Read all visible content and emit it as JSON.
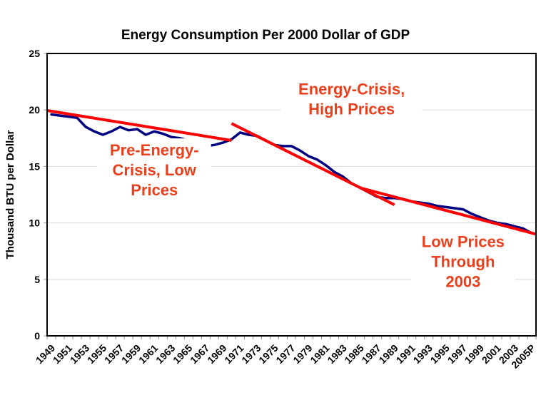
{
  "chart_data": {
    "type": "line",
    "title": "Energy Consumption Per 2000 Dollar of GDP",
    "xlabel": "",
    "ylabel": "Thousand BTU per Dollar",
    "ylim": [
      0,
      25
    ],
    "yticks": [
      0,
      5,
      10,
      15,
      20,
      25
    ],
    "grid": true,
    "legend": "none",
    "categories": [
      "1949",
      "1950",
      "1951",
      "1952",
      "1953",
      "1954",
      "1955",
      "1956",
      "1957",
      "1958",
      "1959",
      "1960",
      "1961",
      "1962",
      "1963",
      "1964",
      "1965",
      "1966",
      "1967",
      "1968",
      "1969",
      "1970",
      "1971",
      "1972",
      "1973",
      "1974",
      "1975",
      "1976",
      "1977",
      "1978",
      "1979",
      "1980",
      "1981",
      "1982",
      "1983",
      "1984",
      "1985",
      "1986",
      "1987",
      "1988",
      "1989",
      "1990",
      "1991",
      "1992",
      "1993",
      "1994",
      "1995",
      "1996",
      "1997",
      "1998",
      "1999",
      "2000",
      "2001",
      "2002",
      "2003",
      "2004",
      "2005P"
    ],
    "xtick_labels": [
      "1949",
      "1951",
      "1953",
      "1955",
      "1957",
      "1959",
      "1961",
      "1963",
      "1965",
      "1967",
      "1969",
      "1971",
      "1973",
      "1975",
      "1977",
      "1979",
      "1981",
      "1983",
      "1985",
      "1987",
      "1989",
      "1991",
      "1993",
      "1995",
      "1997",
      "1999",
      "2001",
      "2003",
      "2005P"
    ],
    "series": [
      {
        "name": "Energy Consumption per 2000 Dollar of GDP",
        "color": "#000080",
        "values": [
          19.6,
          19.5,
          19.4,
          19.3,
          18.5,
          18.1,
          17.8,
          18.1,
          18.5,
          18.2,
          18.3,
          17.8,
          18.1,
          17.9,
          17.6,
          17.5,
          17.3,
          17.0,
          16.8,
          16.9,
          17.1,
          17.4,
          18.0,
          17.8,
          17.7,
          17.3,
          16.9,
          16.8,
          16.8,
          16.4,
          15.9,
          15.6,
          15.1,
          14.5,
          14.1,
          13.5,
          13.1,
          12.7,
          12.3,
          12.2,
          12.2,
          12.1,
          11.9,
          11.8,
          11.7,
          11.5,
          11.4,
          11.3,
          11.2,
          10.8,
          10.5,
          10.2,
          10.0,
          9.9,
          9.7,
          9.5,
          9.1
        ]
      }
    ],
    "trend_lines": [
      {
        "name": "pre-crisis-trend",
        "color": "#ff0000",
        "from": {
          "x": "1949",
          "y": 19.95
        },
        "to": {
          "x": "1970",
          "y": 17.3
        }
      },
      {
        "name": "crisis-trend",
        "color": "#ff0000",
        "from": {
          "x": "1970",
          "y": 18.8
        },
        "to": {
          "x": "1989",
          "y": 11.6
        }
      },
      {
        "name": "low-prices-trend",
        "color": "#ff0000",
        "from": {
          "x": "1985",
          "y": 13.1
        },
        "to": {
          "x": "2005P",
          "y": 9.0
        }
      }
    ],
    "annotations": [
      {
        "name": "energy-crisis-annotation",
        "lines": [
          "Energy-Crisis,",
          "High Prices"
        ],
        "color": "#e8401c",
        "anchor": {
          "x": "1984",
          "y": 20.5
        }
      },
      {
        "name": "pre-crisis-annotation",
        "lines": [
          "Pre-Energy-",
          "Crisis, Low",
          "Prices"
        ],
        "color": "#e8401c",
        "anchor": {
          "x": "1961",
          "y": 14.2
        }
      },
      {
        "name": "low-prices-annotation",
        "lines": [
          "Low Prices",
          "Through",
          "2003"
        ],
        "color": "#e8401c",
        "anchor": {
          "x": "1997",
          "y": 6.1
        }
      }
    ]
  }
}
